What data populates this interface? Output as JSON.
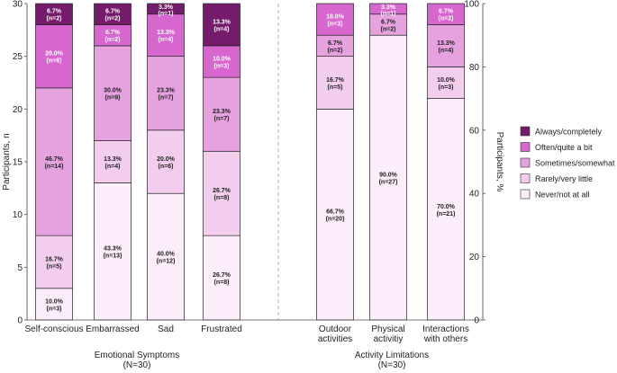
{
  "chart_data": {
    "type": "bar",
    "stacked": true,
    "ylabel_left": "Participants, n",
    "ylabel_right": "Participants, %",
    "ylim_left": [
      0,
      30
    ],
    "ylim_right": [
      0,
      100
    ],
    "yticks_left": [
      "0",
      "5",
      "10",
      "15",
      "20",
      "25",
      "30"
    ],
    "yticks_right": [
      "0",
      "20",
      "40",
      "60",
      "80",
      "100"
    ],
    "levels": [
      {
        "name": "Never/not at all",
        "color": "#fbeefa"
      },
      {
        "name": "Rarely/very little",
        "color": "#f3cdee"
      },
      {
        "name": "Sometimes/somewhat",
        "color": "#e5a2df"
      },
      {
        "name": "Often/quite a bit",
        "color": "#d767cf"
      },
      {
        "name": "Always/completely",
        "color": "#741c6b"
      }
    ],
    "groups": [
      {
        "label_line1": "Emotional Symptoms",
        "label_line2": "(N=30)",
        "categories": [
          {
            "name": "Self-conscious",
            "name_line1": "Self-conscious",
            "name_line2": "",
            "values": [
              3,
              5,
              14,
              6,
              2
            ],
            "labels": [
              [
                "10.0%",
                "(n=3)"
              ],
              [
                "16.7%",
                "(n=5)"
              ],
              [
                "46.7%",
                "(n=14)"
              ],
              [
                "20.0%",
                "(n=6)"
              ],
              [
                "6.7%",
                "(n=2)"
              ]
            ]
          },
          {
            "name": "Embarrassed",
            "name_line1": "Embarrassed",
            "name_line2": "",
            "values": [
              13,
              4,
              9,
              2,
              2
            ],
            "labels": [
              [
                "43.3%",
                "(n=13)"
              ],
              [
                "13.3%",
                "(n=4)"
              ],
              [
                "30.0%",
                "(n=9)"
              ],
              [
                "6.7%",
                "(n=2)"
              ],
              [
                "6.7%",
                "(n=2)"
              ]
            ]
          },
          {
            "name": "Sad",
            "name_line1": "Sad",
            "name_line2": "",
            "values": [
              12,
              6,
              7,
              4,
              1
            ],
            "labels": [
              [
                "40.0%",
                "(n=12)"
              ],
              [
                "20.0%",
                "(n=6)"
              ],
              [
                "23.3%",
                "(n=7)"
              ],
              [
                "13.3%",
                "(n=4)"
              ],
              [
                "3.3%",
                "(n=1)"
              ]
            ]
          },
          {
            "name": "Frustrated",
            "name_line1": "Frustrated",
            "name_line2": "",
            "values": [
              8,
              8,
              7,
              3,
              4
            ],
            "labels": [
              [
                "26.7%",
                "(n=8)"
              ],
              [
                "26.7%",
                "(n=8)"
              ],
              [
                "23.3%",
                "(n=7)"
              ],
              [
                "10.0%",
                "(n=3)"
              ],
              [
                "13.3%",
                "(n=4)"
              ]
            ]
          }
        ]
      },
      {
        "label_line1": "Activity Limitations",
        "label_line2": "(N=30)",
        "categories": [
          {
            "name": "Outdoor activities",
            "name_line1": "Outdoor",
            "name_line2": "activities",
            "values": [
              20,
              5,
              2,
              3,
              0
            ],
            "labels": [
              [
                "66.7%",
                "(n=20)"
              ],
              [
                "16.7%",
                "(n=5)"
              ],
              [
                "6.7%",
                "(n=2)"
              ],
              [
                "10.0%",
                "(n=3)"
              ],
              null
            ]
          },
          {
            "name": "Physical activitiy",
            "name_line1": "Physical",
            "name_line2": "activitiy",
            "values": [
              27,
              0,
              2,
              1,
              0
            ],
            "labels": [
              [
                "90.0%",
                "(n=27)"
              ],
              null,
              [
                "6.7%",
                "(n=2)"
              ],
              [
                "3.3%",
                "(n=1)"
              ],
              null
            ]
          },
          {
            "name": "Interactions with others",
            "name_line1": "Interactions",
            "name_line2": "with others",
            "values": [
              21,
              3,
              4,
              2,
              0
            ],
            "labels": [
              [
                "70.0%",
                "(n=21)"
              ],
              [
                "10.0%",
                "(n=3)"
              ],
              [
                "13.3%",
                "(n=4)"
              ],
              [
                "6.7%",
                "(n=2)"
              ],
              null
            ]
          }
        ]
      }
    ]
  }
}
